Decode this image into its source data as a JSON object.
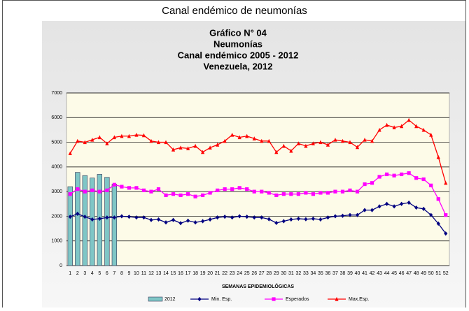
{
  "page": {
    "heading": "Canal endémico de neumonías"
  },
  "chart_data": {
    "type": "combo",
    "title_lines": [
      "Gráfico  N° 04",
      "Neumonías",
      "Canal endémico 2005 - 2012",
      "Venezuela, 2012"
    ],
    "x_label": "SEMANAS EPIDEMIOLÓGICAS",
    "categories": [
      1,
      2,
      3,
      4,
      5,
      6,
      7,
      8,
      9,
      10,
      11,
      12,
      13,
      14,
      15,
      16,
      17,
      18,
      19,
      20,
      21,
      22,
      23,
      24,
      25,
      26,
      27,
      28,
      29,
      30,
      31,
      32,
      33,
      34,
      35,
      36,
      37,
      38,
      39,
      40,
      41,
      42,
      43,
      44,
      45,
      46,
      47,
      48,
      49,
      50,
      51,
      52
    ],
    "ylim": [
      0,
      7000
    ],
    "yticks": [
      0,
      1000,
      2000,
      3000,
      4000,
      5000,
      6000,
      7000
    ],
    "grid": true,
    "legend": "bottom",
    "series": [
      {
        "name": "2012",
        "type": "bar",
        "color": "#7fc6c6",
        "values": [
          3200,
          3780,
          3650,
          3550,
          3700,
          3580,
          3300,
          null,
          null,
          null,
          null,
          null,
          null,
          null,
          null,
          null,
          null,
          null,
          null,
          null,
          null,
          null,
          null,
          null,
          null,
          null,
          null,
          null,
          null,
          null,
          null,
          null,
          null,
          null,
          null,
          null,
          null,
          null,
          null,
          null,
          null,
          null,
          null,
          null,
          null,
          null,
          null,
          null,
          null,
          null,
          null,
          null
        ]
      },
      {
        "name": "Min. Esp.",
        "type": "line",
        "marker": "diamond",
        "color": "#000080",
        "values": [
          1980,
          2100,
          1980,
          1870,
          1900,
          1950,
          1950,
          2000,
          1980,
          1950,
          1950,
          1850,
          1870,
          1750,
          1850,
          1720,
          1820,
          1750,
          1800,
          1870,
          1950,
          1980,
          1950,
          2000,
          1980,
          1950,
          1950,
          1880,
          1730,
          1800,
          1870,
          1900,
          1880,
          1900,
          1870,
          1950,
          2000,
          2020,
          2050,
          2050,
          2250,
          2250,
          2400,
          2500,
          2400,
          2500,
          2550,
          2350,
          2300,
          2050,
          1700,
          1300
        ]
      },
      {
        "name": "Esperados",
        "type": "line",
        "marker": "square",
        "color": "#ff00ff",
        "values": [
          2900,
          3100,
          3000,
          3050,
          3000,
          3050,
          3280,
          3200,
          3150,
          3150,
          3050,
          3000,
          3100,
          2850,
          2900,
          2850,
          2900,
          2800,
          2850,
          2950,
          3050,
          3100,
          3100,
          3150,
          3100,
          3000,
          3000,
          2950,
          2850,
          2900,
          2900,
          2900,
          2950,
          2900,
          2950,
          2950,
          3000,
          3000,
          3050,
          3000,
          3300,
          3350,
          3600,
          3700,
          3650,
          3700,
          3750,
          3550,
          3500,
          3250,
          2700,
          2050
        ]
      },
      {
        "name": "Max.Esp.",
        "type": "line",
        "marker": "triangle",
        "color": "#ff0000",
        "values": [
          4550,
          5050,
          5000,
          5100,
          5200,
          4950,
          5200,
          5250,
          5250,
          5300,
          5280,
          5050,
          5000,
          5000,
          4700,
          4780,
          4750,
          4850,
          4600,
          4780,
          4900,
          5050,
          5300,
          5200,
          5250,
          5150,
          5050,
          5050,
          4600,
          4850,
          4650,
          4950,
          4850,
          4950,
          5000,
          4900,
          5100,
          5050,
          5000,
          4800,
          5100,
          5050,
          5500,
          5700,
          5600,
          5650,
          5900,
          5650,
          5500,
          5300,
          4400,
          3350
        ]
      }
    ]
  }
}
